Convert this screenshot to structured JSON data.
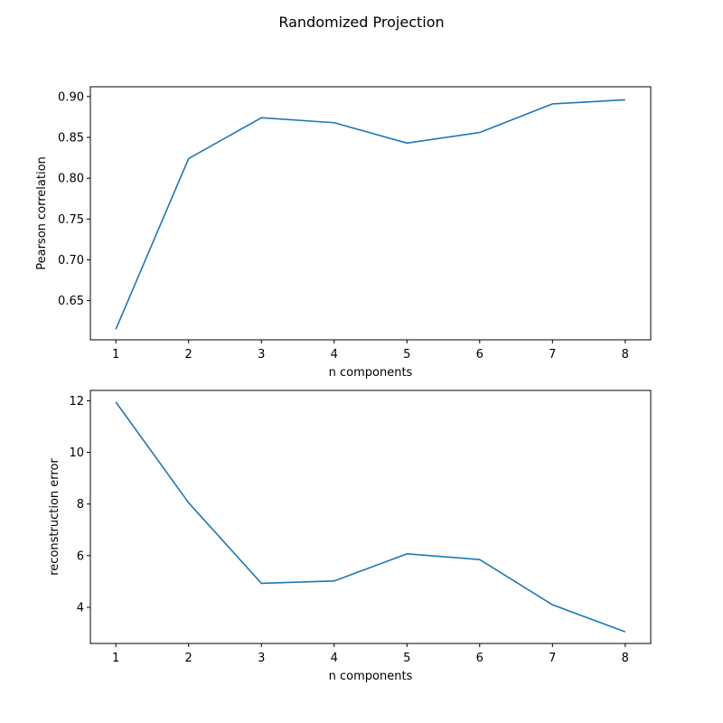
{
  "figure": {
    "suptitle": "Randomized Projection"
  },
  "chart_data": [
    {
      "type": "line",
      "title": "",
      "xlabel": "n components",
      "ylabel": "Pearson correlation",
      "x": [
        1,
        2,
        3,
        4,
        5,
        6,
        7,
        8
      ],
      "xticks": [
        1,
        2,
        3,
        4,
        5,
        6,
        7,
        8
      ],
      "xlim": [
        0.65,
        8.35
      ],
      "ylim": [
        0.602,
        0.912
      ],
      "yticks": [
        0.65,
        0.7,
        0.75,
        0.8,
        0.85,
        0.9
      ],
      "ytick_labels": [
        "0.65",
        "0.70",
        "0.75",
        "0.80",
        "0.85",
        "0.90"
      ],
      "grid": false,
      "series": [
        {
          "values": [
            0.615,
            0.824,
            0.874,
            0.868,
            0.843,
            0.856,
            0.891,
            0.896
          ],
          "color": "#1f77b4"
        }
      ]
    },
    {
      "type": "line",
      "title": "",
      "xlabel": "n components",
      "ylabel": "reconstruction error",
      "x": [
        1,
        2,
        3,
        4,
        5,
        6,
        7,
        8
      ],
      "xticks": [
        1,
        2,
        3,
        4,
        5,
        6,
        7,
        8
      ],
      "xlim": [
        0.65,
        8.35
      ],
      "ylim": [
        2.6,
        12.4
      ],
      "yticks": [
        4,
        6,
        8,
        10,
        12
      ],
      "ytick_labels": [
        "4",
        "6",
        "8",
        "10",
        "12"
      ],
      "grid": false,
      "series": [
        {
          "values": [
            11.95,
            8.05,
            4.93,
            5.02,
            6.07,
            5.85,
            4.1,
            3.05
          ],
          "color": "#1f77b4"
        }
      ]
    }
  ]
}
